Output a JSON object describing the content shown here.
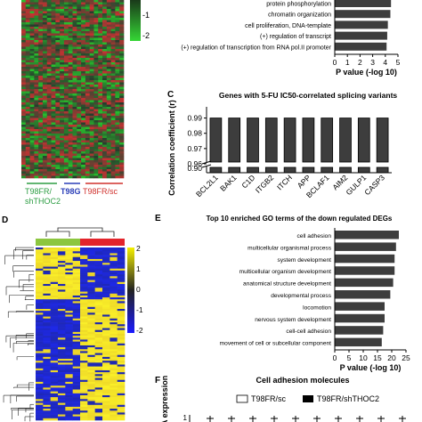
{
  "panel_labels": {
    "C": "C",
    "D": "D",
    "E": "E",
    "F": "F"
  },
  "top_heatmap": {
    "colorbar_ticks": [
      "-1",
      "-2"
    ],
    "groups": [
      {
        "label_line1": "T98FR/",
        "label_line2": "shTHOC2",
        "color": "#2e9e44"
      },
      {
        "label_line1": "T98G",
        "label_line2": "",
        "color": "#2b3fb8"
      },
      {
        "label_line1": "T98FR/sc",
        "label_line2": "",
        "color": "#d0312d"
      }
    ]
  },
  "heatmap_d": {
    "colorbar_ticks": [
      "2",
      "1",
      "0",
      "-1",
      "-2"
    ],
    "group_colors": [
      "#8cc63f",
      "#e3242b"
    ]
  },
  "colors": {
    "bar": "#3d3d3d",
    "accent_green": "#2e9e44",
    "accent_red": "#d0312d"
  },
  "chart_data": [
    {
      "type": "bar",
      "orientation": "horizontal",
      "categories": [
        "protein phosphorylation",
        "chromatin organization",
        "cell proliferation, DNA-template",
        "(+) regulation of transcript",
        "(+) regulation of transcription from RNA pol.II promoter"
      ],
      "values": [
        4.45,
        4.4,
        4.2,
        4.15,
        4.1
      ],
      "xlabel": "P value (-log 10)",
      "xlim": [
        0,
        5
      ],
      "xticks": [
        "0",
        "1",
        "2",
        "3",
        "4",
        "5"
      ]
    },
    {
      "type": "bar",
      "title": "Genes with 5-FU IC50-correlated splicing variants",
      "categories": [
        "BCL2L1",
        "BAK1",
        "C1D",
        "ITGB2",
        "ITCH",
        "APP",
        "BCLAF1",
        "AIM2",
        "GULP1",
        "CASP3"
      ],
      "values": [
        0.99,
        0.99,
        0.99,
        0.99,
        0.99,
        0.99,
        0.99,
        0.99,
        0.99,
        0.99
      ],
      "ylabel": "Correlation coefficient (r)",
      "y_axis_break": [
        0.9,
        0.96
      ],
      "yticks": [
        "0.99",
        "0.98",
        "0.97",
        "0.96",
        "0.90"
      ]
    },
    {
      "type": "bar",
      "orientation": "horizontal",
      "title": "Top 10 enriched GO terms of the down regulated DEGs",
      "categories": [
        "cell adhesion",
        "multicellular organismal process",
        "system development",
        "multicellular organism development",
        "anatomical structure development",
        "developmental process",
        "locomotion",
        "nervous system development",
        "cell-cell adhesion",
        "movement of cell or subcellular component"
      ],
      "values": [
        22.5,
        21.5,
        21,
        21,
        20.5,
        19.5,
        17.5,
        17.5,
        17,
        16.5
      ],
      "xlabel": "P value (-log 10)",
      "xlim": [
        0,
        25
      ],
      "xticks": [
        "0",
        "5",
        "10",
        "15",
        "20",
        "25"
      ]
    },
    {
      "type": "bar",
      "title": "Cell adhesion molecules",
      "ylabel_partial": "A expression",
      "series": [
        {
          "name": "T98FR/sc",
          "color": "#ffffff"
        },
        {
          "name": "T98FR/shTHOC2",
          "color": "#000000"
        }
      ],
      "visible_tick": "1"
    }
  ]
}
